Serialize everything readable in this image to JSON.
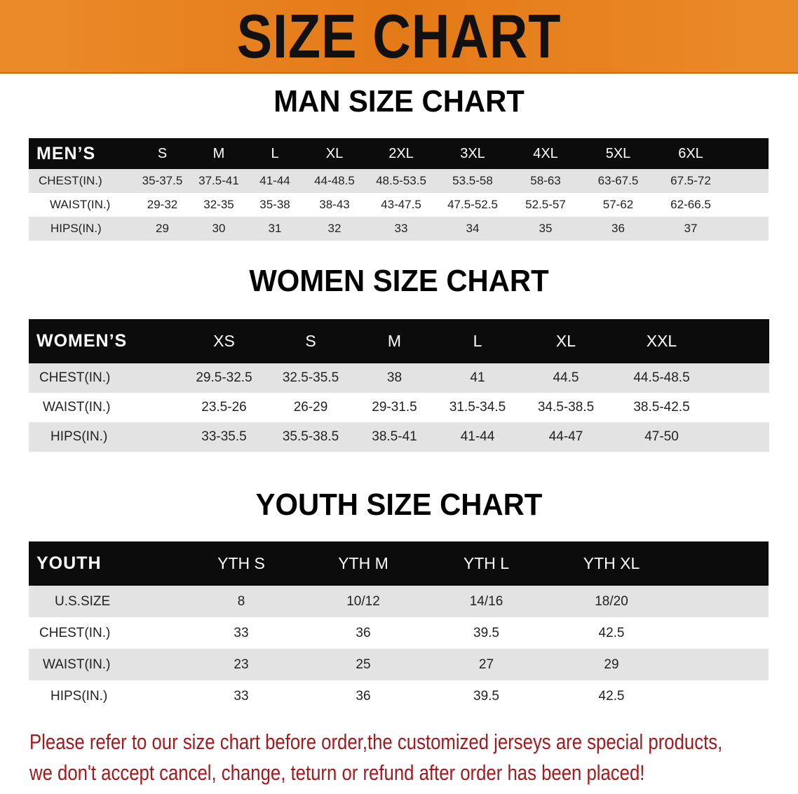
{
  "banner": {
    "title": "SIZE CHART",
    "color": "#e47a17"
  },
  "men": {
    "title": "MAN SIZE CHART",
    "header": "MEN’S",
    "sizes": [
      "S",
      "M",
      "L",
      "XL",
      "2XL",
      "3XL",
      "4XL",
      "5XL",
      "6XL"
    ],
    "rows": [
      {
        "label": "CHEST(IN.)",
        "values": [
          "35-37.5",
          "37.5-41",
          "41-44",
          "44-48.5",
          "48.5-53.5",
          "53.5-58",
          "58-63",
          "63-67.5",
          "67.5-72"
        ]
      },
      {
        "label": "WAIST(IN.)",
        "values": [
          "29-32",
          "32-35",
          "35-38",
          "38-43",
          "43-47.5",
          "47.5-52.5",
          "52.5-57",
          "57-62",
          "62-66.5"
        ]
      },
      {
        "label": "HIPS(IN.)",
        "values": [
          "29",
          "30",
          "31",
          "32",
          "33",
          "34",
          "35",
          "36",
          "37"
        ]
      }
    ]
  },
  "women": {
    "title": "WOMEN SIZE CHART",
    "header": "WOMEN’S",
    "sizes": [
      "XS",
      "S",
      "M",
      "L",
      "XL",
      "XXL"
    ],
    "rows": [
      {
        "label": "CHEST(IN.)",
        "values": [
          "29.5-32.5",
          "32.5-35.5",
          "38",
          "41",
          "44.5",
          "44.5-48.5"
        ]
      },
      {
        "label": "WAIST(IN.)",
        "values": [
          "23.5-26",
          "26-29",
          "29-31.5",
          "31.5-34.5",
          "34.5-38.5",
          "38.5-42.5"
        ]
      },
      {
        "label": "HIPS(IN.)",
        "values": [
          "33-35.5",
          "35.5-38.5",
          "38.5-41",
          "41-44",
          "44-47",
          "47-50"
        ]
      }
    ]
  },
  "youth": {
    "title": "YOUTH SIZE CHART",
    "header": "YOUTH",
    "sizes": [
      "YTH S",
      "YTH M",
      "YTH L",
      "YTH XL"
    ],
    "rows": [
      {
        "label": "U.S.SIZE",
        "values": [
          "8",
          "10/12",
          "14/16",
          "18/20"
        ]
      },
      {
        "label": "CHEST(IN.)",
        "values": [
          "33",
          "36",
          "39.5",
          "42.5"
        ]
      },
      {
        "label": "WAIST(IN.)",
        "values": [
          "23",
          "25",
          "27",
          "29"
        ]
      },
      {
        "label": "HIPS(IN.)",
        "values": [
          "33",
          "36",
          "39.5",
          "42.5"
        ]
      }
    ]
  },
  "notice": {
    "line1": "Please refer to our size chart before order,the customized jerseys are special products,",
    "line2": "we don't accept cancel, change, teturn or refund after order has been placed!",
    "color": "#a3191c"
  }
}
